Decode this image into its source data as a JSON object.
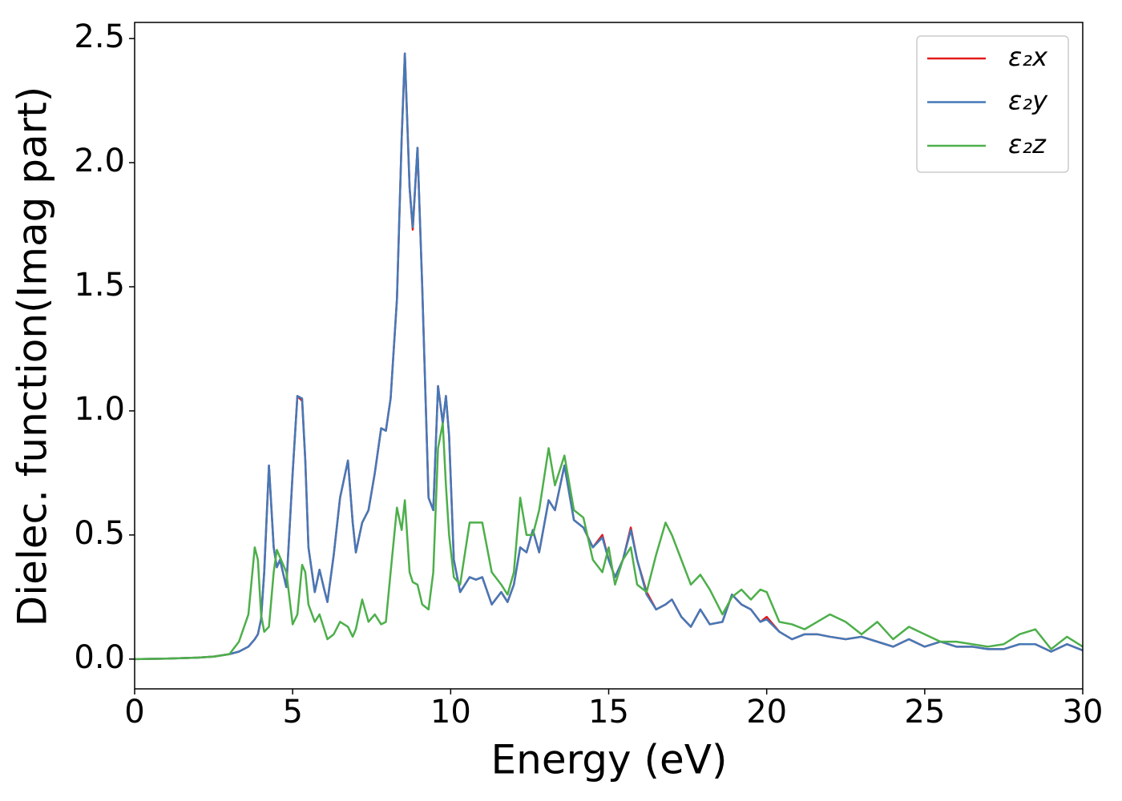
{
  "chart_data": {
    "type": "line",
    "xlabel": "Energy (eV)",
    "ylabel": "Dielec. function(Imag part)",
    "x": [
      0,
      1,
      2,
      2.5,
      3,
      3.3,
      3.6,
      3.8,
      3.9,
      4.0,
      4.1,
      4.25,
      4.4,
      4.5,
      4.6,
      4.8,
      5.0,
      5.15,
      5.3,
      5.4,
      5.5,
      5.7,
      5.85,
      6.0,
      6.1,
      6.3,
      6.5,
      6.75,
      6.9,
      7.0,
      7.2,
      7.4,
      7.6,
      7.8,
      7.95,
      8.1,
      8.3,
      8.45,
      8.55,
      8.7,
      8.8,
      8.95,
      9.1,
      9.3,
      9.45,
      9.6,
      9.75,
      9.85,
      9.95,
      10.1,
      10.3,
      10.6,
      10.8,
      11.0,
      11.3,
      11.6,
      11.8,
      12.0,
      12.2,
      12.4,
      12.6,
      12.8,
      13.1,
      13.3,
      13.6,
      13.9,
      14.2,
      14.5,
      14.8,
      15.0,
      15.2,
      15.45,
      15.7,
      15.9,
      16.2,
      16.5,
      16.8,
      17.0,
      17.3,
      17.6,
      17.9,
      18.2,
      18.6,
      18.9,
      19.2,
      19.5,
      19.8,
      20.0,
      20.4,
      20.8,
      21.2,
      21.6,
      22.0,
      22.5,
      23.0,
      23.5,
      24.0,
      24.5,
      25.0,
      25.5,
      26.0,
      26.5,
      27.0,
      27.5,
      28.0,
      28.5,
      29.0,
      29.5,
      30.0
    ],
    "series": [
      {
        "name": "ε₂x",
        "color": "#e41a1c",
        "values": [
          0,
          0.002,
          0.006,
          0.01,
          0.02,
          0.03,
          0.05,
          0.08,
          0.1,
          0.16,
          0.35,
          0.78,
          0.45,
          0.37,
          0.4,
          0.29,
          0.75,
          1.06,
          1.04,
          0.8,
          0.45,
          0.27,
          0.36,
          0.28,
          0.23,
          0.42,
          0.65,
          0.8,
          0.55,
          0.43,
          0.55,
          0.6,
          0.75,
          0.93,
          0.92,
          1.05,
          1.45,
          2.1,
          2.44,
          1.9,
          1.73,
          2.06,
          1.5,
          0.65,
          0.6,
          1.1,
          0.95,
          1.06,
          0.9,
          0.4,
          0.27,
          0.33,
          0.32,
          0.33,
          0.22,
          0.27,
          0.23,
          0.3,
          0.45,
          0.43,
          0.52,
          0.43,
          0.64,
          0.6,
          0.78,
          0.56,
          0.53,
          0.45,
          0.5,
          0.4,
          0.33,
          0.4,
          0.53,
          0.4,
          0.27,
          0.2,
          0.22,
          0.24,
          0.17,
          0.13,
          0.2,
          0.14,
          0.15,
          0.26,
          0.22,
          0.2,
          0.15,
          0.17,
          0.11,
          0.08,
          0.1,
          0.1,
          0.09,
          0.08,
          0.09,
          0.07,
          0.05,
          0.08,
          0.05,
          0.07,
          0.05,
          0.05,
          0.04,
          0.04,
          0.06,
          0.06,
          0.03,
          0.06,
          0.035
        ]
      },
      {
        "name": "ε₂y",
        "color": "#4479b8",
        "values": [
          0,
          0.002,
          0.006,
          0.01,
          0.02,
          0.03,
          0.05,
          0.08,
          0.1,
          0.16,
          0.35,
          0.78,
          0.45,
          0.37,
          0.4,
          0.29,
          0.75,
          1.06,
          1.05,
          0.8,
          0.45,
          0.27,
          0.36,
          0.28,
          0.23,
          0.42,
          0.65,
          0.8,
          0.55,
          0.43,
          0.55,
          0.6,
          0.75,
          0.93,
          0.92,
          1.05,
          1.45,
          2.1,
          2.44,
          1.9,
          1.74,
          2.06,
          1.5,
          0.65,
          0.6,
          1.1,
          0.95,
          1.06,
          0.9,
          0.4,
          0.27,
          0.33,
          0.32,
          0.33,
          0.22,
          0.27,
          0.23,
          0.3,
          0.45,
          0.43,
          0.52,
          0.43,
          0.64,
          0.6,
          0.78,
          0.56,
          0.53,
          0.45,
          0.49,
          0.4,
          0.33,
          0.4,
          0.52,
          0.4,
          0.26,
          0.2,
          0.22,
          0.24,
          0.17,
          0.13,
          0.2,
          0.14,
          0.15,
          0.26,
          0.22,
          0.2,
          0.15,
          0.16,
          0.11,
          0.08,
          0.1,
          0.1,
          0.09,
          0.08,
          0.09,
          0.07,
          0.05,
          0.08,
          0.05,
          0.07,
          0.05,
          0.05,
          0.04,
          0.04,
          0.06,
          0.06,
          0.03,
          0.06,
          0.035
        ]
      },
      {
        "name": "ε₂z",
        "color": "#4daf4a",
        "values": [
          0,
          0.002,
          0.006,
          0.01,
          0.02,
          0.07,
          0.18,
          0.45,
          0.4,
          0.18,
          0.11,
          0.13,
          0.35,
          0.44,
          0.41,
          0.35,
          0.14,
          0.18,
          0.38,
          0.35,
          0.22,
          0.15,
          0.18,
          0.12,
          0.08,
          0.1,
          0.15,
          0.13,
          0.09,
          0.12,
          0.24,
          0.15,
          0.18,
          0.14,
          0.15,
          0.35,
          0.61,
          0.52,
          0.64,
          0.35,
          0.31,
          0.3,
          0.22,
          0.2,
          0.35,
          0.85,
          0.95,
          0.7,
          0.5,
          0.33,
          0.3,
          0.55,
          0.55,
          0.55,
          0.35,
          0.3,
          0.26,
          0.35,
          0.65,
          0.5,
          0.5,
          0.6,
          0.85,
          0.7,
          0.82,
          0.6,
          0.57,
          0.4,
          0.35,
          0.45,
          0.3,
          0.4,
          0.45,
          0.3,
          0.27,
          0.42,
          0.55,
          0.5,
          0.4,
          0.3,
          0.34,
          0.28,
          0.18,
          0.25,
          0.28,
          0.24,
          0.28,
          0.27,
          0.15,
          0.14,
          0.12,
          0.15,
          0.18,
          0.15,
          0.1,
          0.15,
          0.08,
          0.13,
          0.1,
          0.07,
          0.07,
          0.06,
          0.05,
          0.06,
          0.1,
          0.12,
          0.04,
          0.09,
          0.05
        ]
      }
    ],
    "xlim": [
      0,
      30
    ],
    "xticks": [
      0,
      5,
      10,
      15,
      20,
      25,
      30
    ],
    "ylim": [
      -0.12,
      2.565
    ],
    "yticks": [
      {
        "value": 0,
        "label": "0.0"
      },
      0.5,
      {
        "value": 1,
        "label": "1.0"
      },
      1.5,
      {
        "value": 2,
        "label": "2.0"
      },
      2.5
    ],
    "legend": "upper right",
    "grid": false
  }
}
